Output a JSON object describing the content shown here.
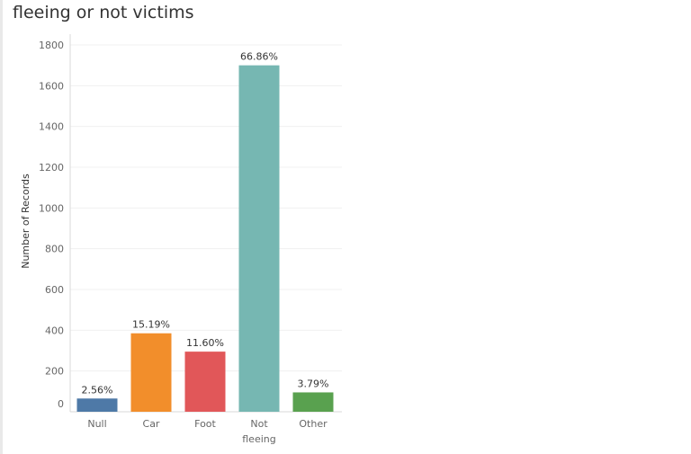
{
  "page": {
    "title": "fleeing or not victims"
  },
  "chart_data": {
    "type": "bar",
    "title": "fleeing or not victims",
    "xlabel": "",
    "ylabel": "Number of Records",
    "ylim": [
      0,
      1800
    ],
    "y_ticks": [
      "1800",
      "1600",
      "1400",
      "1200",
      "1000",
      "800",
      "600",
      "400",
      "200",
      "0"
    ],
    "y_tick_values": [
      1800,
      1600,
      1400,
      1200,
      1000,
      800,
      600,
      400,
      200,
      0
    ],
    "categories": [
      {
        "label_lines": [
          "Null"
        ]
      },
      {
        "label_lines": [
          "Car"
        ]
      },
      {
        "label_lines": [
          "Foot"
        ]
      },
      {
        "label_lines": [
          "Not",
          "fleeing"
        ]
      },
      {
        "label_lines": [
          "Other"
        ]
      }
    ],
    "values": [
      65,
      385,
      295,
      1700,
      95
    ],
    "data_labels": [
      "2.56%",
      "15.19%",
      "11.60%",
      "66.86%",
      "3.79%"
    ],
    "colors": [
      "#4e79a7",
      "#f28e2b",
      "#e15759",
      "#76b7b2",
      "#59a14f"
    ],
    "grid": true,
    "legend": "none"
  }
}
